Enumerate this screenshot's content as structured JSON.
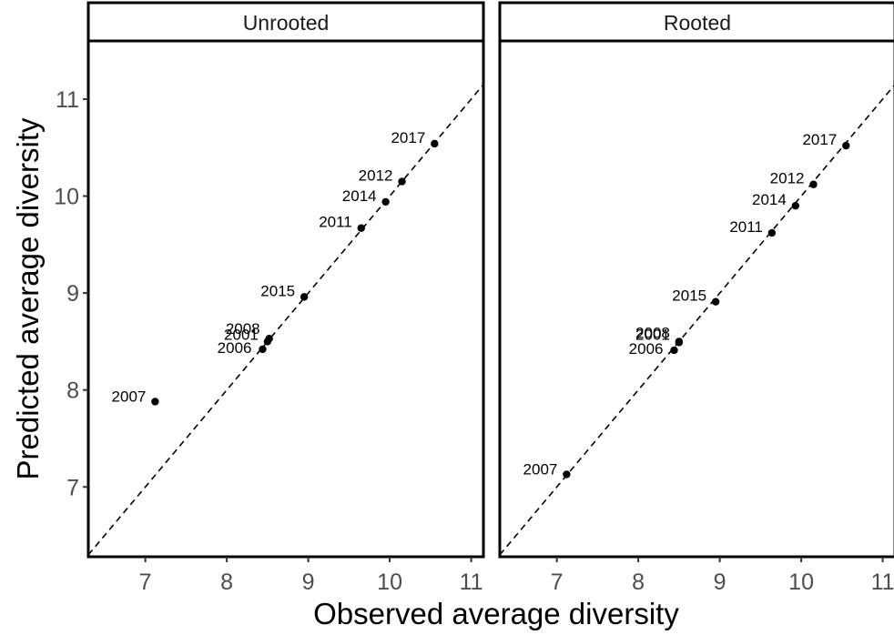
{
  "chart_data": {
    "type": "scatter",
    "xlabel": "Observed average diversity",
    "ylabel": "Predicted average diversity",
    "xlim": [
      6.3,
      11.15
    ],
    "ylim": [
      6.28,
      11.6
    ],
    "x_ticks": [
      7,
      8,
      9,
      10,
      11
    ],
    "y_ticks": [
      7,
      8,
      9,
      10,
      11
    ],
    "reference_line": "y = x (dashed)",
    "grid": false,
    "panels": [
      {
        "title": "Unrooted",
        "points": [
          {
            "label": "2017",
            "x": 10.55,
            "y": 10.54
          },
          {
            "label": "2012",
            "x": 10.15,
            "y": 10.15
          },
          {
            "label": "2014",
            "x": 9.95,
            "y": 9.94
          },
          {
            "label": "2011",
            "x": 9.65,
            "y": 9.67
          },
          {
            "label": "2015",
            "x": 8.95,
            "y": 8.96
          },
          {
            "label": "2008",
            "x": 8.52,
            "y": 8.53
          },
          {
            "label": "2001",
            "x": 8.5,
            "y": 8.5
          },
          {
            "label": "2006",
            "x": 8.44,
            "y": 8.42
          },
          {
            "label": "2007",
            "x": 7.12,
            "y": 7.88
          }
        ]
      },
      {
        "title": "Rooted",
        "points": [
          {
            "label": "2017",
            "x": 10.55,
            "y": 10.52
          },
          {
            "label": "2012",
            "x": 10.15,
            "y": 10.12
          },
          {
            "label": "2014",
            "x": 9.93,
            "y": 9.9
          },
          {
            "label": "2011",
            "x": 9.64,
            "y": 9.62
          },
          {
            "label": "2015",
            "x": 8.95,
            "y": 8.91
          },
          {
            "label": "2008",
            "x": 8.5,
            "y": 8.49
          },
          {
            "label": "2001",
            "x": 8.5,
            "y": 8.5
          },
          {
            "label": "2006",
            "x": 8.44,
            "y": 8.41
          },
          {
            "label": "2007",
            "x": 7.12,
            "y": 7.13
          }
        ]
      }
    ]
  }
}
